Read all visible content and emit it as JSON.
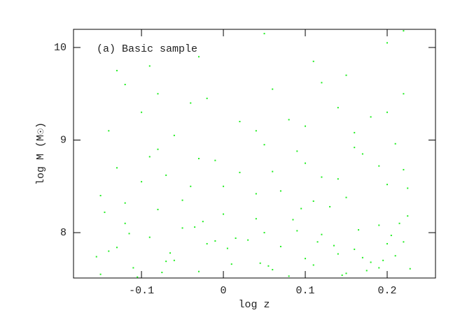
{
  "chart_data": {
    "type": "scatter",
    "annotation": "(a)  Basic sample",
    "x_label": "log z",
    "y_label": "log M (M☉)",
    "color": "#22ee22",
    "xlim": [
      -0.183,
      0.259
    ],
    "ylim": [
      7.51,
      10.196
    ],
    "xticks": [
      -0.1,
      0,
      0.1,
      0.2
    ],
    "yticks": [
      8,
      9,
      10
    ],
    "x": [
      -0.15,
      -0.14,
      -0.12,
      -0.11,
      -0.09,
      -0.08,
      -0.06,
      -0.05,
      -0.03,
      -0.02,
      0.0,
      0.01,
      0.03,
      0.04,
      0.06,
      0.07,
      0.09,
      0.1,
      0.12,
      0.13,
      0.15,
      0.16,
      0.18,
      0.19,
      0.21,
      0.22,
      0.225,
      -0.145,
      -0.105,
      -0.065,
      -0.025,
      0.015,
      0.055,
      0.095,
      0.135,
      0.175,
      0.205,
      0.215,
      0.195,
      0.165,
      0.145,
      0.115,
      0.085,
      0.045,
      0.005,
      -0.035,
      -0.075,
      -0.115,
      -0.155,
      0.228,
      0.2,
      0.17,
      0.11,
      0.05,
      -0.01,
      -0.07,
      -0.13,
      0.08,
      0.14,
      0.19,
      -0.15,
      -0.13,
      -0.1,
      -0.08,
      -0.05,
      -0.03,
      0.0,
      0.02,
      0.05,
      0.07,
      0.1,
      0.12,
      0.15,
      0.17,
      0.2,
      0.22,
      -0.12,
      -0.07,
      -0.01,
      0.04,
      0.09,
      0.14,
      0.19,
      0.225,
      0.16,
      0.11,
      0.06,
      -0.04,
      -0.09,
      0.21,
      -0.14,
      -0.1,
      -0.06,
      -0.02,
      0.02,
      0.06,
      0.1,
      0.14,
      0.18,
      0.22,
      -0.12,
      -0.04,
      0.04,
      0.12,
      0.2,
      0.08,
      -0.08,
      0.16,
      -0.13,
      -0.03,
      0.05,
      0.11,
      0.2,
      0.22,
      0.15,
      -0.09
    ],
    "values": [
      7.55,
      7.8,
      8.1,
      7.62,
      7.95,
      8.25,
      7.7,
      8.05,
      7.58,
      7.88,
      8.2,
      7.66,
      7.92,
      8.15,
      7.6,
      7.85,
      8.02,
      7.72,
      7.98,
      8.28,
      7.56,
      7.82,
      7.68,
      8.08,
      7.75,
      7.9,
      8.18,
      8.22,
      7.52,
      7.78,
      8.12,
      7.94,
      7.64,
      8.26,
      7.86,
      7.59,
      7.97,
      8.1,
      7.7,
      8.03,
      7.54,
      7.9,
      8.14,
      7.67,
      7.83,
      8.06,
      7.57,
      7.99,
      7.74,
      7.61,
      7.88,
      7.73,
      7.65,
      8.0,
      7.91,
      7.69,
      7.84,
      7.53,
      7.77,
      7.62,
      8.4,
      8.7,
      8.55,
      8.9,
      8.35,
      8.8,
      8.5,
      8.65,
      8.95,
      8.45,
      8.75,
      8.6,
      8.38,
      8.85,
      8.52,
      8.68,
      8.32,
      8.62,
      8.78,
      8.42,
      8.88,
      8.58,
      8.72,
      8.48,
      8.92,
      8.34,
      8.66,
      8.5,
      8.82,
      8.96,
      9.1,
      9.3,
      9.05,
      9.45,
      9.2,
      9.55,
      9.15,
      9.35,
      9.25,
      9.5,
      9.6,
      9.4,
      9.1,
      9.62,
      9.3,
      9.22,
      9.5,
      9.08,
      9.75,
      9.9,
      10.15,
      9.85,
      10.05,
      10.18,
      9.7,
      9.8
    ]
  }
}
